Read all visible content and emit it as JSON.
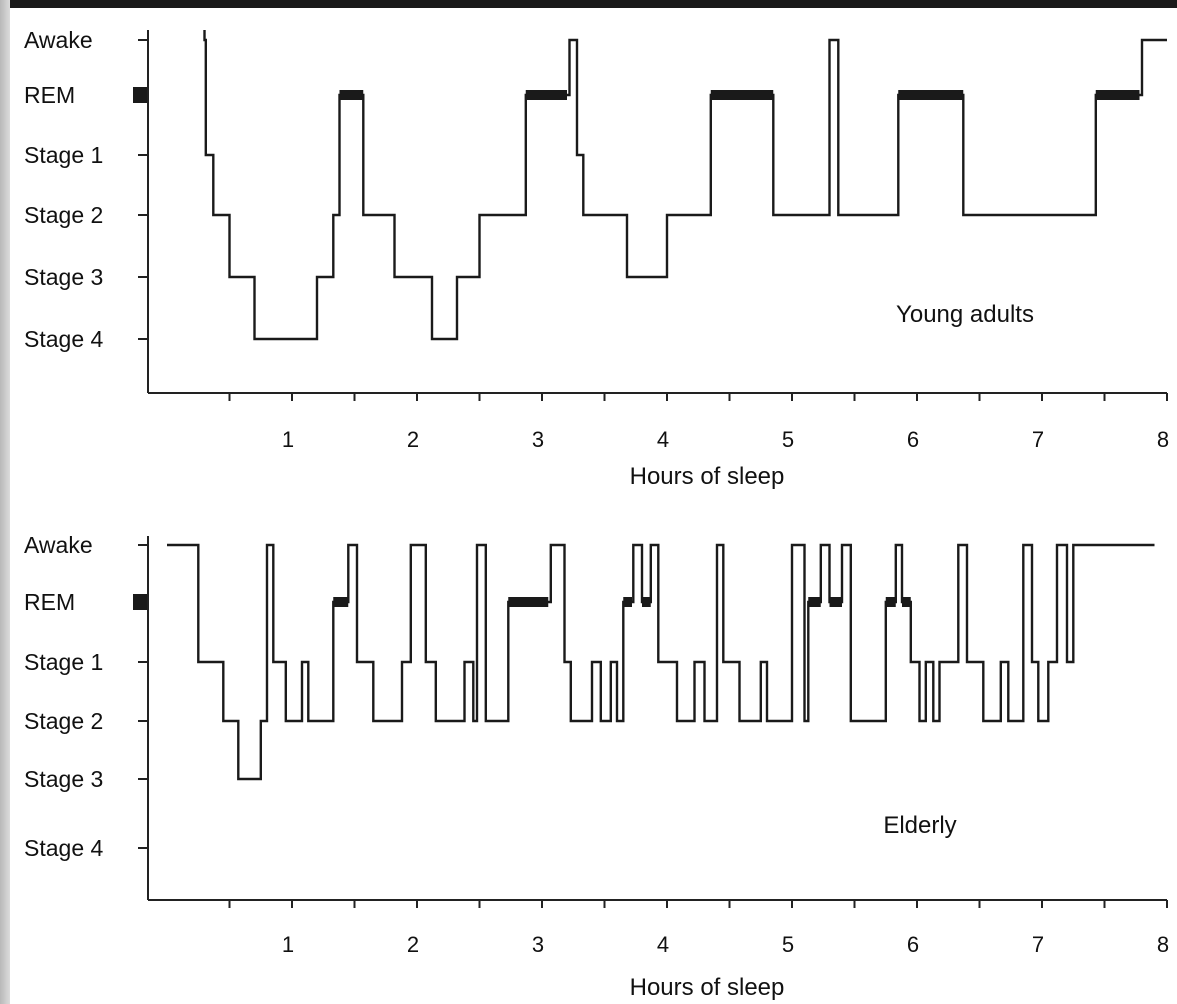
{
  "colors": {
    "line": "#1a1a1a",
    "axis": "#222222",
    "text": "#111111",
    "background": "#ffffff"
  },
  "chart_data": [
    {
      "type": "line",
      "subtype": "step",
      "annotation": "Young adults",
      "xlabel": "Hours of sleep",
      "x_ticks": [
        "1",
        "2",
        "3",
        "4",
        "5",
        "6",
        "7",
        "8"
      ],
      "y_categories": [
        "Awake",
        "REM",
        "Stage 1",
        "Stage 2",
        "Stage 3",
        "Stage 4"
      ],
      "xlim": [
        0,
        8
      ],
      "points": [
        [
          0.3,
          "Awake"
        ],
        [
          0.31,
          "Stage 1"
        ],
        [
          0.37,
          "Stage 2"
        ],
        [
          0.5,
          "Stage 3"
        ],
        [
          0.7,
          "Stage 4"
        ],
        [
          1.2,
          "Stage 3"
        ],
        [
          1.33,
          "Stage 2"
        ],
        [
          1.38,
          "REM"
        ],
        [
          1.57,
          "Stage 2"
        ],
        [
          1.82,
          "Stage 3"
        ],
        [
          2.12,
          "Stage 4"
        ],
        [
          2.32,
          "Stage 3"
        ],
        [
          2.5,
          "Stage 2"
        ],
        [
          2.87,
          "REM"
        ],
        [
          3.22,
          "Awake"
        ],
        [
          3.28,
          "Stage 1"
        ],
        [
          3.33,
          "Stage 2"
        ],
        [
          3.68,
          "Stage 3"
        ],
        [
          4.0,
          "Stage 2"
        ],
        [
          4.35,
          "REM"
        ],
        [
          4.85,
          "Stage 2"
        ],
        [
          5.3,
          "Awake"
        ],
        [
          5.37,
          "Stage 2"
        ],
        [
          5.85,
          "REM"
        ],
        [
          6.37,
          "Stage 2"
        ],
        [
          7.43,
          "REM"
        ],
        [
          7.8,
          "Awake"
        ],
        [
          8.0,
          "Awake"
        ]
      ],
      "rem_segments": [
        [
          1.38,
          1.57
        ],
        [
          2.87,
          3.2
        ],
        [
          4.35,
          4.85
        ],
        [
          5.85,
          6.37
        ],
        [
          7.43,
          7.78
        ]
      ]
    },
    {
      "type": "line",
      "subtype": "step",
      "annotation": "Elderly",
      "xlabel": "Hours of sleep",
      "x_ticks": [
        "1",
        "2",
        "3",
        "4",
        "5",
        "6",
        "7",
        "8"
      ],
      "y_categories": [
        "Awake",
        "REM",
        "Stage 1",
        "Stage 2",
        "Stage 3",
        "Stage 4"
      ],
      "xlim": [
        0,
        8
      ],
      "points": [
        [
          0.0,
          "Awake"
        ],
        [
          0.25,
          "Stage 1"
        ],
        [
          0.45,
          "Stage 2"
        ],
        [
          0.57,
          "Stage 3"
        ],
        [
          0.75,
          "Stage 2"
        ],
        [
          0.8,
          "Awake"
        ],
        [
          0.85,
          "Stage 1"
        ],
        [
          0.95,
          "Stage 2"
        ],
        [
          1.08,
          "Stage 1"
        ],
        [
          1.13,
          "Stage 2"
        ],
        [
          1.33,
          "REM"
        ],
        [
          1.45,
          "Awake"
        ],
        [
          1.52,
          "Stage 1"
        ],
        [
          1.65,
          "Stage 2"
        ],
        [
          1.88,
          "Stage 1"
        ],
        [
          1.95,
          "Awake"
        ],
        [
          2.07,
          "Stage 1"
        ],
        [
          2.15,
          "Stage 2"
        ],
        [
          2.38,
          "Stage 1"
        ],
        [
          2.45,
          "Stage 2"
        ],
        [
          2.48,
          "Awake"
        ],
        [
          2.55,
          "Stage 2"
        ],
        [
          2.73,
          "REM"
        ],
        [
          3.07,
          "Awake"
        ],
        [
          3.18,
          "Stage 1"
        ],
        [
          3.23,
          "Stage 2"
        ],
        [
          3.4,
          "Stage 1"
        ],
        [
          3.47,
          "Stage 2"
        ],
        [
          3.55,
          "Stage 1"
        ],
        [
          3.6,
          "Stage 2"
        ],
        [
          3.65,
          "REM"
        ],
        [
          3.73,
          "Awake"
        ],
        [
          3.8,
          "REM"
        ],
        [
          3.87,
          "Awake"
        ],
        [
          3.93,
          "Stage 1"
        ],
        [
          4.08,
          "Stage 2"
        ],
        [
          4.22,
          "Stage 1"
        ],
        [
          4.3,
          "Stage 2"
        ],
        [
          4.4,
          "Awake"
        ],
        [
          4.45,
          "Stage 1"
        ],
        [
          4.58,
          "Stage 2"
        ],
        [
          4.75,
          "Stage 1"
        ],
        [
          4.8,
          "Stage 2"
        ],
        [
          5.0,
          "Awake"
        ],
        [
          5.1,
          "Stage 2"
        ],
        [
          5.13,
          "REM"
        ],
        [
          5.23,
          "Awake"
        ],
        [
          5.3,
          "REM"
        ],
        [
          5.4,
          "Awake"
        ],
        [
          5.47,
          "Stage 2"
        ],
        [
          5.75,
          "REM"
        ],
        [
          5.83,
          "Awake"
        ],
        [
          5.88,
          "REM"
        ],
        [
          5.95,
          "Stage 1"
        ],
        [
          6.02,
          "Stage 2"
        ],
        [
          6.07,
          "Stage 1"
        ],
        [
          6.13,
          "Stage 2"
        ],
        [
          6.18,
          "Stage 1"
        ],
        [
          6.33,
          "Awake"
        ],
        [
          6.4,
          "Stage 1"
        ],
        [
          6.53,
          "Stage 2"
        ],
        [
          6.67,
          "Stage 1"
        ],
        [
          6.73,
          "Stage 2"
        ],
        [
          6.85,
          "Awake"
        ],
        [
          6.92,
          "Stage 1"
        ],
        [
          6.97,
          "Stage 2"
        ],
        [
          7.05,
          "Stage 1"
        ],
        [
          7.12,
          "Awake"
        ],
        [
          7.2,
          "Stage 1"
        ],
        [
          7.25,
          "Awake"
        ],
        [
          7.9,
          "Awake"
        ]
      ],
      "rem_segments": [
        [
          1.33,
          1.45
        ],
        [
          2.73,
          3.05
        ],
        [
          3.65,
          3.72
        ],
        [
          3.8,
          3.87
        ],
        [
          5.13,
          5.23
        ],
        [
          5.3,
          5.4
        ],
        [
          5.75,
          5.83
        ],
        [
          5.88,
          5.95
        ]
      ]
    }
  ]
}
